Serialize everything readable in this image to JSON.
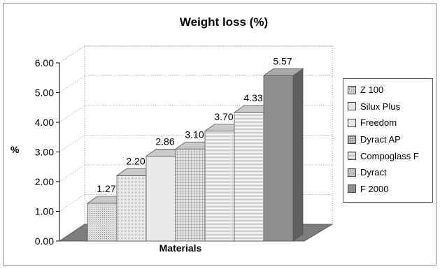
{
  "chart_data": {
    "type": "bar",
    "title": "Weight loss (%)",
    "xlabel": "Materials",
    "ylabel": "%",
    "ylim": [
      0,
      6
    ],
    "yticks": [
      "0.00",
      "1.00",
      "2.00",
      "3.00",
      "4.00",
      "5.00",
      "6.00"
    ],
    "grid": true,
    "legend_position": "right",
    "series": [
      {
        "name": "Z 100",
        "value": 1.27,
        "label": "1.27",
        "color": "#cfcfcf",
        "pattern": "dots"
      },
      {
        "name": "Silux Plus",
        "value": 2.2,
        "label": "2.20",
        "color": "#e6e6e6",
        "pattern": "fine"
      },
      {
        "name": "Freedom",
        "value": 2.86,
        "label": "2.86",
        "color": "#e9e9e9",
        "pattern": "none"
      },
      {
        "name": "Dyract AP",
        "value": 3.1,
        "label": "3.10",
        "color": "#d8d8d8",
        "pattern": "grid"
      },
      {
        "name": "Compoglass F",
        "value": 3.7,
        "label": "3.70",
        "color": "#f4f4f4",
        "pattern": "hlines"
      },
      {
        "name": "Dyract",
        "value": 4.33,
        "label": "4.33",
        "color": "#c4c4c4",
        "pattern": "hlines"
      },
      {
        "name": "F 2000",
        "value": 5.57,
        "label": "5.57",
        "color": "#8f8f8f",
        "pattern": "none"
      }
    ]
  }
}
